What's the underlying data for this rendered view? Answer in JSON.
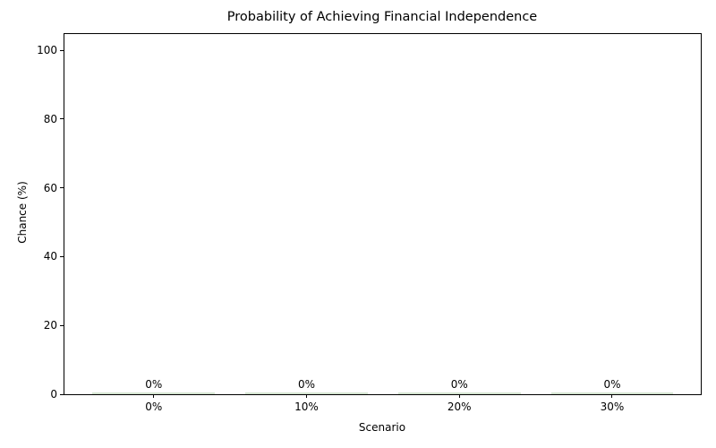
{
  "chart_data": {
    "type": "bar",
    "title": "Probability of Achieving Financial Independence",
    "xlabel": "Scenario",
    "ylabel": "Chance (%)",
    "categories": [
      "0%",
      "10%",
      "20%",
      "30%"
    ],
    "values": [
      0,
      0,
      0,
      0
    ],
    "bar_labels": [
      "0%",
      "0%",
      "0%",
      "0%"
    ],
    "yticks": [
      0,
      20,
      40,
      60,
      80,
      100
    ],
    "ylim": [
      0,
      105
    ],
    "xlim": [
      -0.59,
      3.58
    ],
    "bar_width_units": 0.8,
    "bar_color": "#96be8c",
    "bar_opacity": 0.4,
    "axis_color": "#000000",
    "background_color": "#ffffff",
    "grid": false,
    "legend": false
  }
}
